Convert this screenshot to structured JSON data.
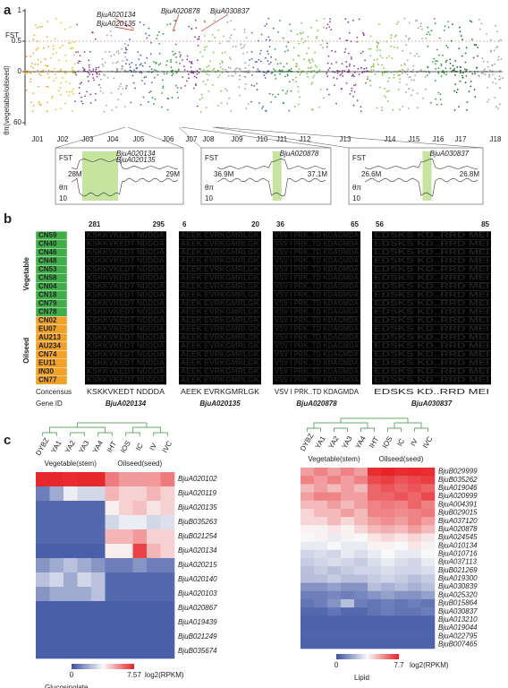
{
  "panel_a": {
    "label": "a",
    "fst_label": "FST",
    "pi_label": "θπ(vegetable/oilseed)",
    "fst_ticks": [
      1,
      0.5,
      0
    ],
    "pi_ticks": [
      60
    ],
    "chromosomes": [
      "J01",
      "J02",
      "J03",
      "J04",
      "J05",
      "J06",
      "J07",
      "J08",
      "J09",
      "J10",
      "J11",
      "J12",
      "J13",
      "J14",
      "J15",
      "J16",
      "J17",
      "J18"
    ],
    "chromosome_colors": [
      "#f2a41f",
      "#e6c41c",
      "#8d3b96",
      "#a3a3a3",
      "#4a62b0",
      "#2e9a3c",
      "#8d3b96",
      "#7ec64b",
      "#a3a3a3",
      "#4a62b0",
      "#2e9a3c",
      "#7ec64b",
      "#8d3b96",
      "#7ec64b",
      "#a3a3a3",
      "#2e9a3c",
      "#1a6b2a",
      "#a3a3a3"
    ],
    "annotations": [
      "BjuA020134",
      "BjuA020135",
      "BjuA020878",
      "BjuA030837"
    ],
    "zooms": [
      {
        "fst_label": "FST",
        "pi_label": "θπ",
        "pi_tick": 10,
        "start": "28M",
        "end": "29M",
        "genes": [
          "BjuA020134",
          "BjuA020135"
        ]
      },
      {
        "fst_label": "FST",
        "pi_label": "θπ",
        "pi_tick": 10,
        "start": "36.9M",
        "end": "37.1M",
        "genes": [
          "BjuA020878"
        ]
      },
      {
        "fst_label": "FST",
        "pi_label": "θπ",
        "pi_tick": 10,
        "start": "26.6M",
        "end": "26.8M",
        "genes": [
          "BjuA030837"
        ]
      }
    ]
  },
  "panel_b": {
    "label": "b",
    "group_vegetable": "Vegetable",
    "group_oilseed": "Oilseed",
    "vegetable": [
      "CN59",
      "CN40",
      "CN46",
      "CN48",
      "CN53",
      "CN58",
      "CN04",
      "CN18",
      "CN79",
      "CN78"
    ],
    "oilseed": [
      "CN02",
      "EU07",
      "AU213",
      "AU234",
      "CN74",
      "EU11",
      "IN30",
      "CN77"
    ],
    "consensus_label": "Concensus",
    "gene_id_label": "Gene ID",
    "blocks": [
      {
        "start": 281,
        "end": 295,
        "sequence": "KSKKVKEDT NDDDA",
        "gene": "BjuA020134"
      },
      {
        "start": 6,
        "end": 20,
        "sequence": "AEEK EVRKGMRLGK",
        "gene": "BjuA020135"
      },
      {
        "start": 36,
        "end": 65,
        "sequence": "VSV I PRK..TD KDAGMDA",
        "gene": "BjuA020878"
      },
      {
        "start": 56,
        "end": 85,
        "sequence": "EDSKS KD..RRD MEI",
        "gene": "BjuA030837"
      }
    ]
  },
  "panel_c": {
    "label": "c",
    "samples": [
      "DYBZ",
      "YA1",
      "YA2",
      "YA3",
      "YA4",
      "IHT",
      "IOS",
      "IC",
      "IV",
      "IVC"
    ],
    "group_vegetable": "Vegetable(stem)",
    "group_oilseed": "Oilseed(seed)",
    "heatmaps": [
      {
        "title": "Glucosinolate",
        "min": 0,
        "max": 7.57,
        "max_label": "7.57",
        "unit": "log2(RPKM)",
        "genes": [
          "BjuA020102",
          "BjuA020119",
          "BjuA020135",
          "BjuB035263",
          "BjuB021254",
          "BjuA020134",
          "BjuA020215",
          "BjuA020140",
          "BjuA020103",
          "BjuA020867",
          "BjuA019439",
          "BjuB021249",
          "BjuB035674"
        ],
        "values": [
          [
            7.5,
            7.5,
            7.4,
            7.5,
            7.5,
            6,
            5.5,
            5.5,
            5.5,
            6
          ],
          [
            1,
            2,
            3.5,
            3,
            3,
            5,
            4.5,
            4.5,
            5,
            4.5
          ],
          [
            0.5,
            0.5,
            0.5,
            0.5,
            0.5,
            4,
            4.5,
            4.8,
            4.2,
            4.5
          ],
          [
            0.5,
            0.5,
            0.5,
            0.5,
            0.5,
            3,
            3.5,
            3.5,
            3,
            3.2
          ],
          [
            0.5,
            0.5,
            0.5,
            0.5,
            0.5,
            5,
            5,
            5.5,
            4.5,
            4.5
          ],
          [
            0.3,
            0.3,
            0.3,
            0.3,
            0.3,
            4,
            4,
            7,
            5,
            4.5
          ],
          [
            1.5,
            2,
            2.5,
            2,
            1.5,
            1,
            1,
            1.5,
            1,
            1
          ],
          [
            2.5,
            3,
            2,
            3,
            2.5,
            0.5,
            0.5,
            0.5,
            0.5,
            0.5
          ],
          [
            1.5,
            2,
            2,
            2,
            2.5,
            0.5,
            0.5,
            0.5,
            0.5,
            0.5
          ],
          [
            0.3,
            0.3,
            0.3,
            0.3,
            0.3,
            0.3,
            0.3,
            0.3,
            0.3,
            0.3
          ],
          [
            0.3,
            0.3,
            0.3,
            0.3,
            0.3,
            0.3,
            0.3,
            0.3,
            0.3,
            0.3
          ],
          [
            0.3,
            0.3,
            0.3,
            0.3,
            0.3,
            0.3,
            0.3,
            0.3,
            0.3,
            0.3
          ],
          [
            0.3,
            0.3,
            0.3,
            0.3,
            0.3,
            0.3,
            0.3,
            0.3,
            0.3,
            0.3
          ]
        ]
      },
      {
        "title": "Lipid",
        "min": 0,
        "max": 7.7,
        "max_label": "7.7",
        "unit": "log2(RPKM)",
        "genes": [
          "BjuB029999",
          "BjuB035262",
          "BjuA019046",
          "BjuA020999",
          "BjuA004391",
          "BjuB029015",
          "BjuA037120",
          "BjuA020878",
          "BjuA024545",
          "BjuA010134",
          "BjuA010716",
          "BjuA037113",
          "BjuB021269",
          "BjuA019300",
          "BjuA030839",
          "BjuA025320",
          "BjuB015864",
          "BjuA030837",
          "BjuA013210",
          "BjuA019044",
          "BjuA022795",
          "BjuB007465"
        ],
        "values": [
          [
            5.5,
            6,
            5.5,
            6,
            5.5,
            7.5,
            7.7,
            7.5,
            7.6,
            7.5
          ],
          [
            6,
            5.5,
            6,
            5.5,
            6,
            7,
            7.2,
            6.8,
            7,
            7.2
          ],
          [
            5,
            5.5,
            5,
            5.5,
            5,
            6.5,
            6.8,
            6.5,
            6.8,
            6.5
          ],
          [
            5.5,
            6,
            6,
            5.5,
            5.5,
            6.5,
            6.5,
            6.8,
            6.5,
            7
          ],
          [
            5,
            5,
            5.5,
            5,
            5.5,
            6,
            6.2,
            6,
            6.5,
            6
          ],
          [
            4.5,
            5,
            5,
            5.5,
            5,
            6,
            6,
            5.8,
            6,
            6.2
          ],
          [
            4.5,
            4.5,
            5,
            4.5,
            5,
            5.5,
            5.8,
            5.5,
            6,
            5.5
          ],
          [
            4,
            4,
            4.2,
            4,
            4.5,
            5,
            5.2,
            5,
            5.5,
            5
          ],
          [
            3.8,
            4,
            3.5,
            4,
            3.8,
            4.2,
            4.5,
            4.2,
            4.5,
            4.2
          ],
          [
            3.5,
            3.5,
            3.8,
            3.5,
            3.5,
            4,
            4,
            3.8,
            4.2,
            4
          ],
          [
            3,
            3.2,
            3,
            3.5,
            3.2,
            3.5,
            3.8,
            3.5,
            3.5,
            3.8
          ],
          [
            2.8,
            3,
            3.2,
            3,
            2.8,
            3.2,
            3.5,
            3.2,
            3,
            3.5
          ],
          [
            2.5,
            2.8,
            2.5,
            2.8,
            3,
            3,
            3.2,
            3,
            3,
            3.2
          ],
          [
            2.5,
            2.5,
            2.8,
            2.5,
            2.5,
            2.8,
            3,
            2.8,
            2.5,
            2.8
          ],
          [
            1.5,
            1.5,
            1.8,
            1.5,
            1.5,
            2.5,
            2.2,
            2.5,
            2.2,
            2.5
          ],
          [
            1,
            1,
            1.2,
            1,
            1.2,
            1.5,
            1.8,
            1.5,
            1.5,
            1.8
          ],
          [
            0.8,
            1,
            1.5,
            2.5,
            1,
            0.8,
            1,
            0.8,
            1,
            0.8
          ],
          [
            0.5,
            0.5,
            0.8,
            0.5,
            0.5,
            0.8,
            1,
            0.8,
            0.8,
            1
          ],
          [
            0.4,
            0.4,
            0.4,
            0.4,
            0.4,
            0.4,
            0.4,
            0.4,
            0.4,
            0.4
          ],
          [
            0.4,
            0.4,
            0.4,
            0.4,
            0.4,
            0.4,
            0.4,
            0.4,
            0.4,
            0.4
          ],
          [
            0.4,
            0.4,
            0.4,
            0.4,
            0.4,
            0.4,
            0.4,
            0.4,
            0.4,
            0.4
          ],
          [
            0.4,
            0.4,
            0.4,
            0.4,
            0.4,
            0.4,
            0.4,
            0.4,
            0.4,
            0.4
          ]
        ]
      }
    ]
  }
}
